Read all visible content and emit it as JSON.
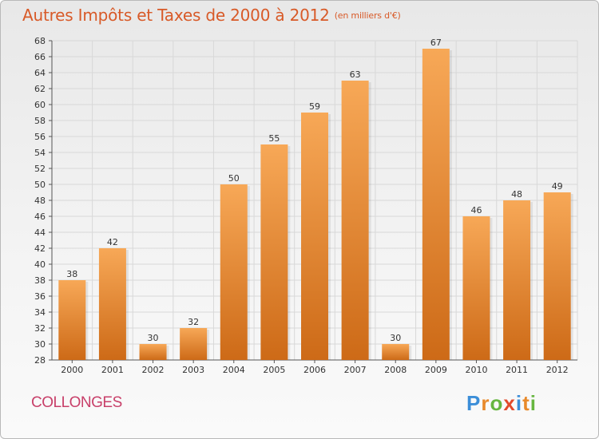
{
  "header": {
    "title": "Autres Impôts et Taxes de 2000 à 2012",
    "unit": "(en milliers d'€)"
  },
  "footer": {
    "commune": "COLLONGES",
    "logo": [
      "P",
      "r",
      "o",
      "x",
      "i",
      "t",
      "i"
    ]
  },
  "colors": {
    "bar_top": "#f7a857",
    "bar_bottom": "#cd6a17",
    "title": "#d85a28",
    "commune": "#c8406a",
    "logo": [
      "#3c8ed8",
      "#e8892a",
      "#67b640",
      "#e24a2b",
      "#3c8ed8",
      "#e8892a",
      "#67b640"
    ]
  },
  "chart_data": {
    "type": "bar",
    "title": "Autres Impôts et Taxes de 2000 à 2012",
    "xlabel": "",
    "ylabel": "",
    "categories": [
      "2000",
      "2001",
      "2002",
      "2003",
      "2004",
      "2005",
      "2006",
      "2007",
      "2008",
      "2009",
      "2010",
      "2011",
      "2012"
    ],
    "values": [
      38,
      42,
      30,
      32,
      50,
      55,
      59,
      63,
      30,
      67,
      46,
      48,
      49
    ],
    "ylim": [
      28,
      68
    ],
    "yticks": [
      28,
      30,
      32,
      34,
      36,
      38,
      40,
      42,
      44,
      46,
      48,
      50,
      52,
      54,
      56,
      58,
      60,
      62,
      64,
      66,
      68
    ],
    "grid": true,
    "legend": "none"
  }
}
